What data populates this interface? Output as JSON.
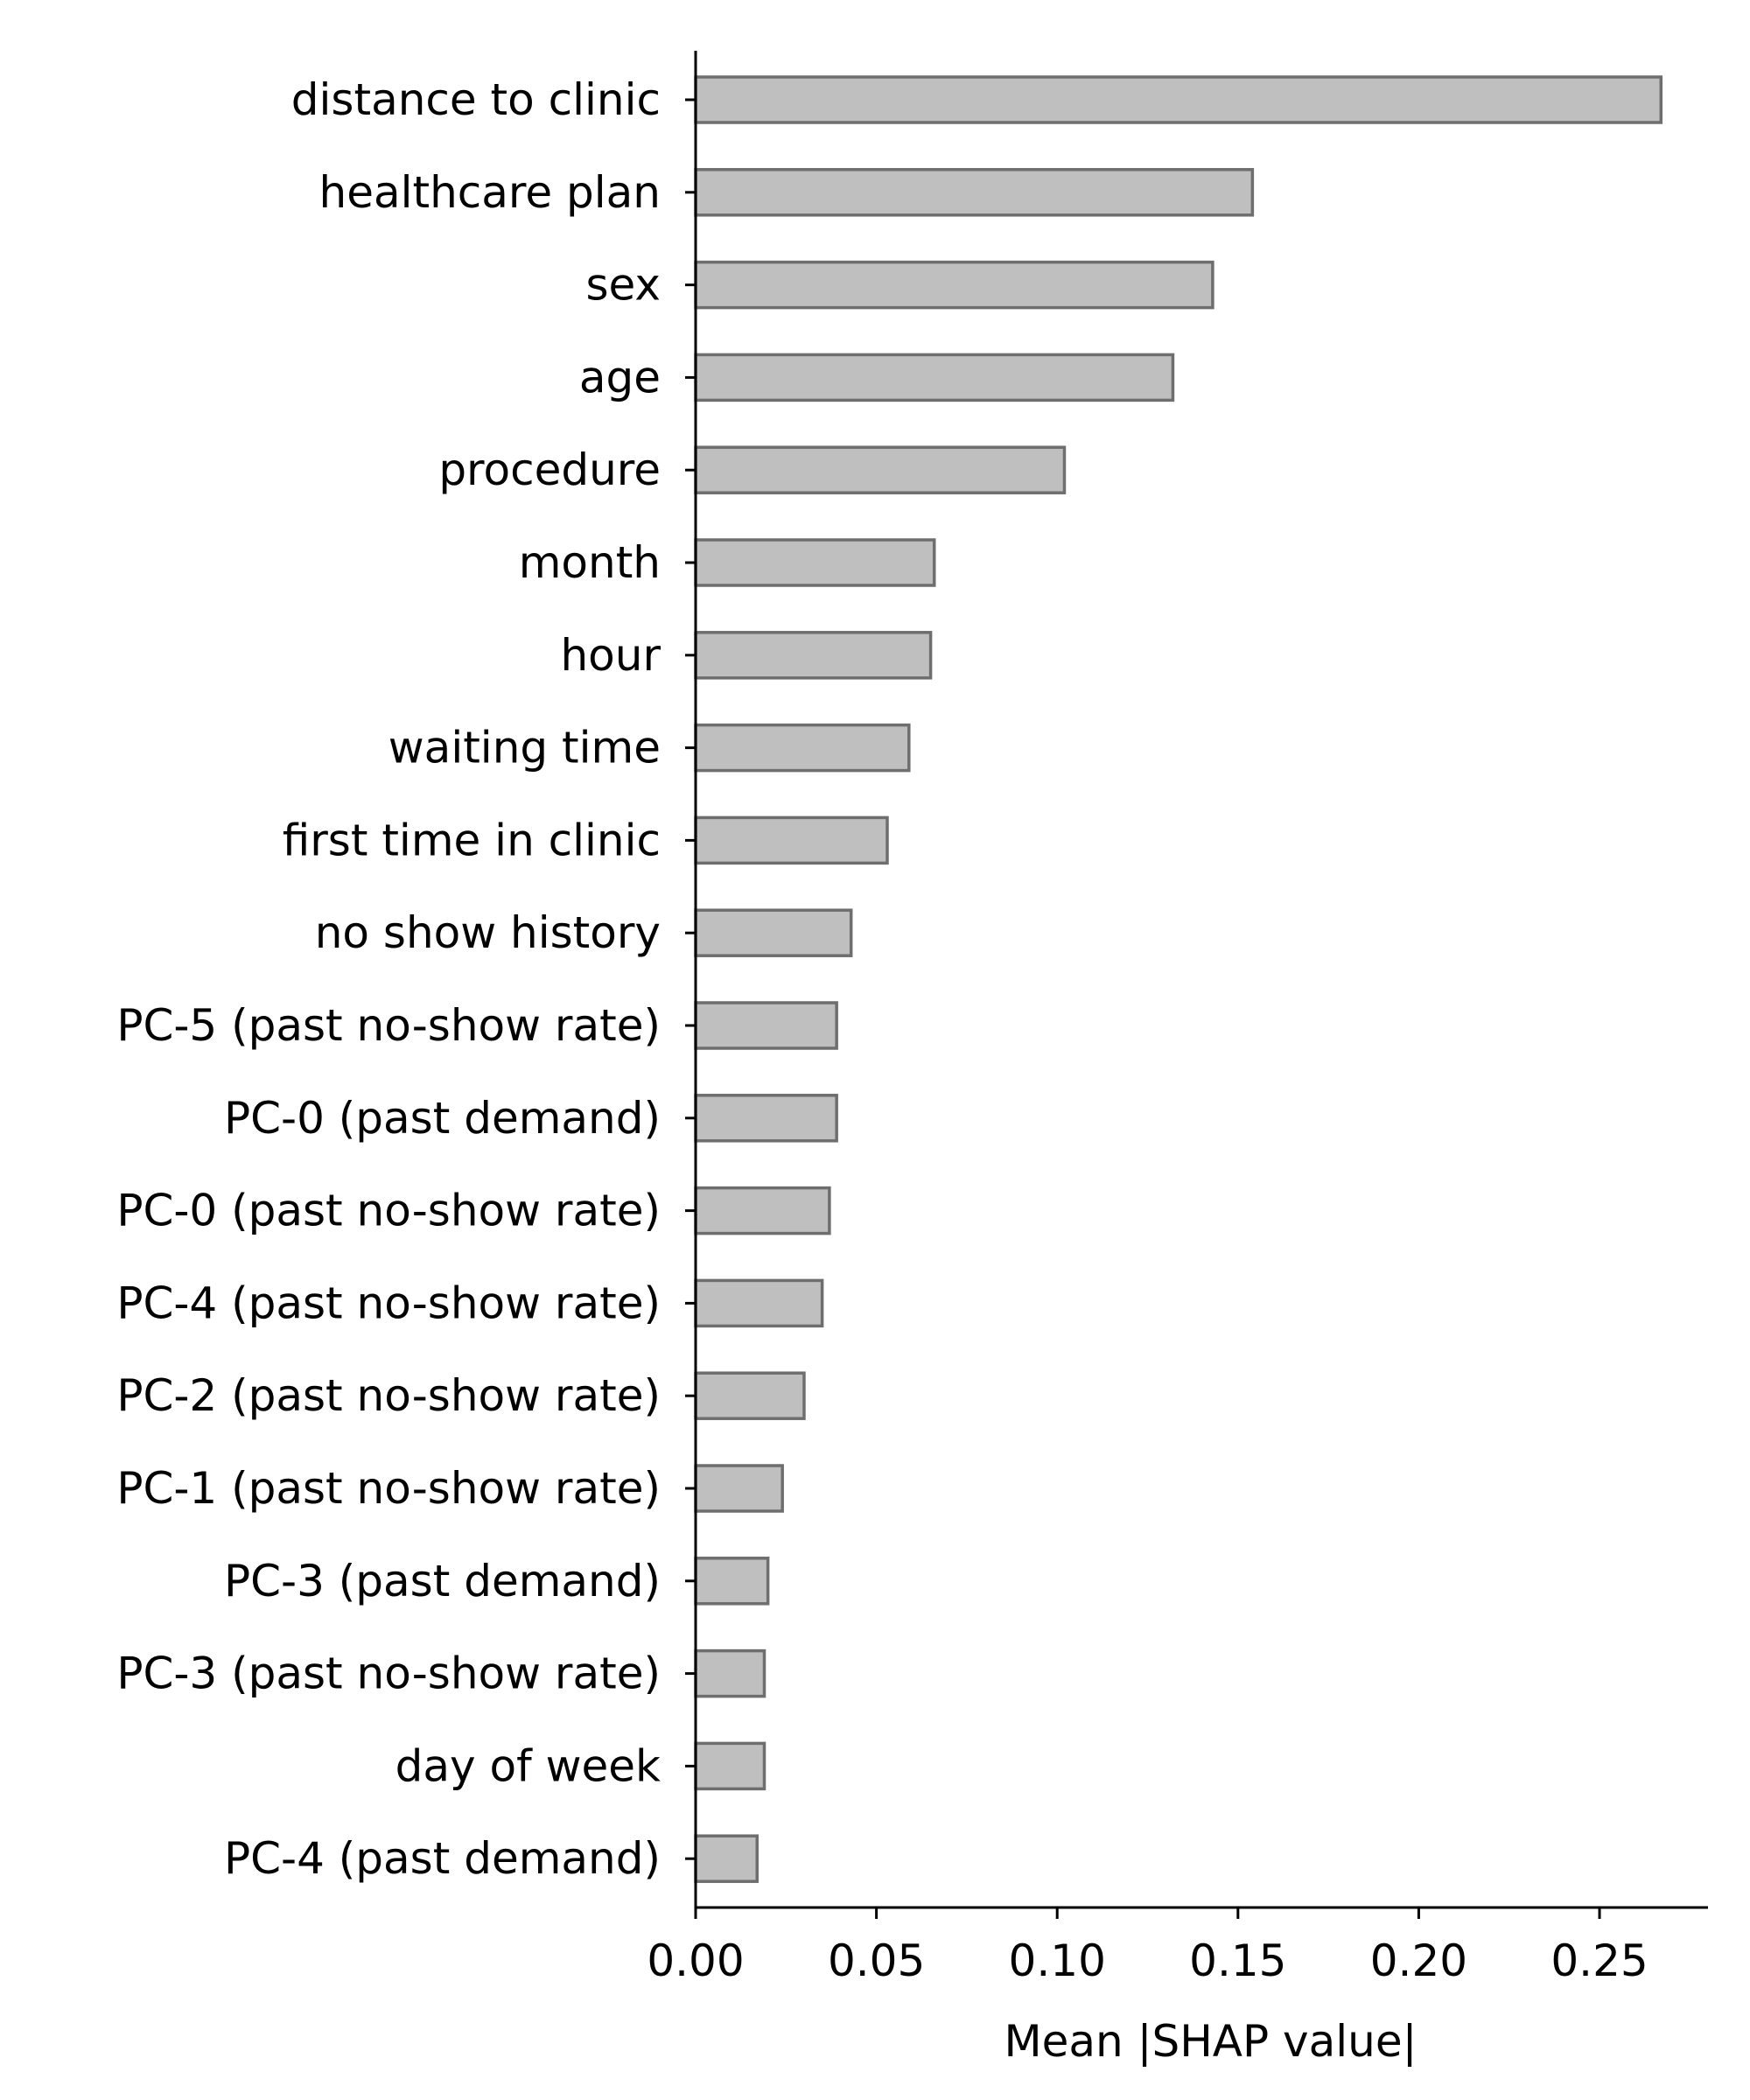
{
  "chart_data": {
    "type": "bar",
    "orientation": "horizontal",
    "title": "",
    "xlabel": "Mean |SHAP value|",
    "ylabel": "",
    "xlim": [
      0,
      0.28
    ],
    "xticks": [
      0.0,
      0.05,
      0.1,
      0.15,
      0.2,
      0.25
    ],
    "xtick_labels": [
      "0.00",
      "0.05",
      "0.10",
      "0.15",
      "0.20",
      "0.25"
    ],
    "grid": false,
    "legend": "none",
    "bar_fill": "#bfbfbf",
    "bar_edge": "#6e6e6e",
    "categories": [
      "distance to clinic",
      "healthcare plan",
      "sex",
      "age",
      "procedure",
      "month",
      "hour",
      "waiting time",
      "first time in clinic",
      "no show history",
      "PC-5 (past no-show rate)",
      "PC-0 (past demand)",
      "PC-0 (past no-show rate)",
      "PC-4 (past no-show rate)",
      "PC-2 (past no-show rate)",
      "PC-1 (past no-show rate)",
      "PC-3 (past demand)",
      "PC-3 (past no-show rate)",
      "day of week",
      "PC-4 (past demand)"
    ],
    "values": [
      0.267,
      0.154,
      0.143,
      0.132,
      0.102,
      0.066,
      0.065,
      0.059,
      0.053,
      0.043,
      0.039,
      0.039,
      0.037,
      0.035,
      0.03,
      0.024,
      0.02,
      0.019,
      0.019,
      0.017
    ]
  }
}
